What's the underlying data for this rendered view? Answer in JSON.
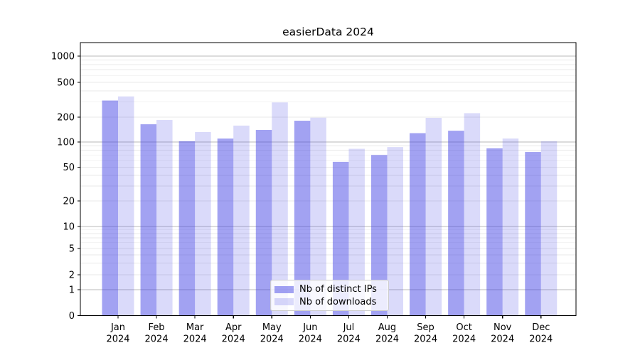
{
  "chart_data": {
    "type": "bar",
    "title": "easierData 2024",
    "x": {
      "months": [
        "Jan",
        "Feb",
        "Mar",
        "Apr",
        "May",
        "Jun",
        "Jul",
        "Aug",
        "Sep",
        "Oct",
        "Nov",
        "Dec"
      ],
      "year": "2024"
    },
    "series": [
      {
        "name": "Nb of distinct IPs",
        "color": "#4646e6",
        "alpha": 0.5,
        "values": [
          310,
          164,
          102,
          110,
          140,
          181,
          58,
          70,
          128,
          137,
          84,
          76
        ]
      },
      {
        "name": "Nb of downloads",
        "color": "#4646e6",
        "alpha": 0.2,
        "values": [
          345,
          185,
          132,
          158,
          295,
          197,
          83,
          87,
          196,
          222,
          110,
          102
        ]
      }
    ],
    "y_ticks": [
      0,
      1,
      2,
      5,
      10,
      20,
      50,
      100,
      200,
      500,
      1000
    ],
    "y_scale": "symlog",
    "ylim": [
      0,
      1400
    ],
    "grid": "horizontal major and minor",
    "legend_position": "inside lower-center",
    "colors": {
      "major_grid": "#b9b9b9",
      "minor_grid": "#e8e8e8",
      "axis": "#000000"
    }
  }
}
